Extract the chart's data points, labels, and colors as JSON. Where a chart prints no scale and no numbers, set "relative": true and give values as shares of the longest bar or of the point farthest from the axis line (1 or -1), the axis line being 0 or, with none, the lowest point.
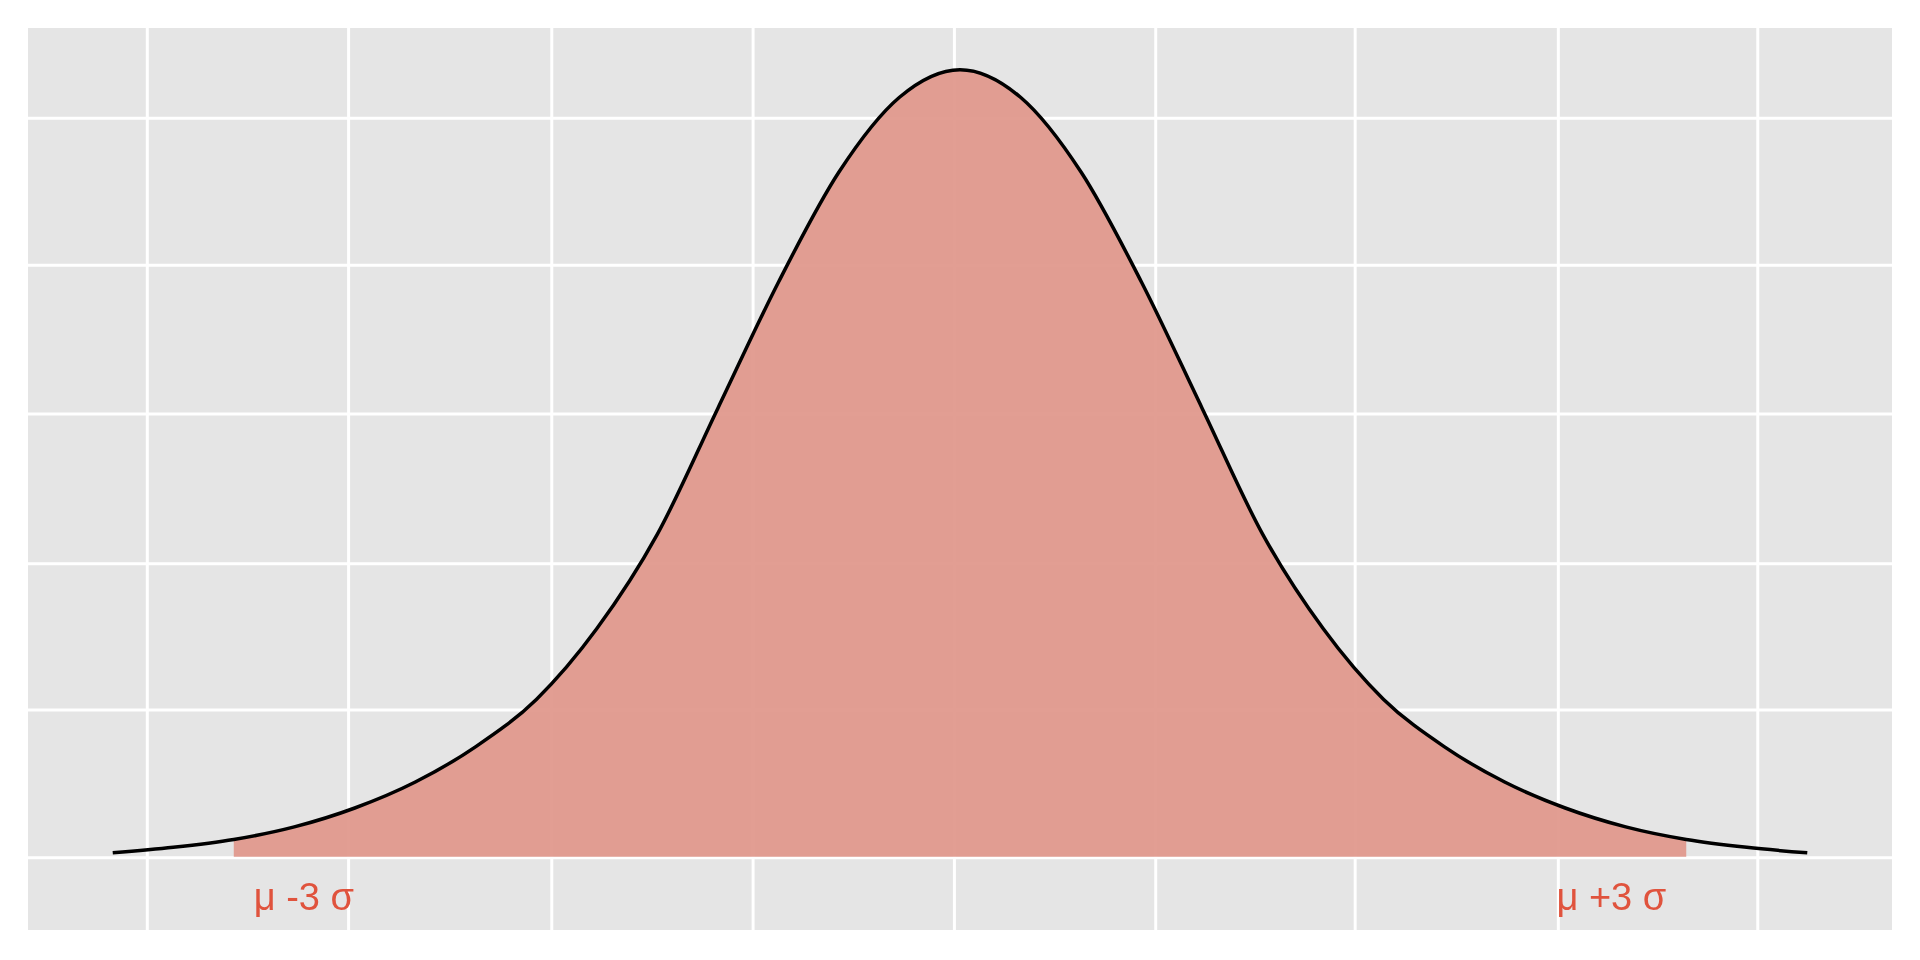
{
  "chart_data": {
    "type": "area",
    "relative": true,
    "grid": true,
    "categories": [
      null,
      null,
      null,
      null,
      null,
      null,
      null,
      null,
      null,
      null,
      null,
      null,
      null,
      null,
      null,
      null,
      null,
      null,
      null,
      null,
      null,
      null,
      null,
      null,
      null,
      null,
      null,
      null,
      null
    ],
    "series": [
      {
        "color": "#e0998d",
        "values": [
          null,
          null,
          0.022,
          0.038,
          0.062,
          0.095,
          0.14,
          0.2,
          0.29,
          0.41,
          0.57,
          0.73,
          0.87,
          0.965,
          1,
          0.965,
          0.87,
          0.73,
          0.57,
          0.41,
          0.29,
          0.2,
          0.14,
          0.095,
          0.062,
          0.038,
          0.022,
          null,
          null
        ]
      },
      {
        "type": "line",
        "color": "#000000",
        "values": [
          0.005,
          0.012,
          0.022,
          0.038,
          0.062,
          0.095,
          0.14,
          0.2,
          0.29,
          0.41,
          0.57,
          0.73,
          0.87,
          0.965,
          1,
          0.965,
          0.87,
          0.73,
          0.57,
          0.41,
          0.29,
          0.2,
          0.14,
          0.095,
          0.062,
          0.038,
          0.022,
          0.012,
          0.005
        ]
      }
    ],
    "annotations": [
      "μ -3 σ",
      "μ +3 σ"
    ]
  }
}
